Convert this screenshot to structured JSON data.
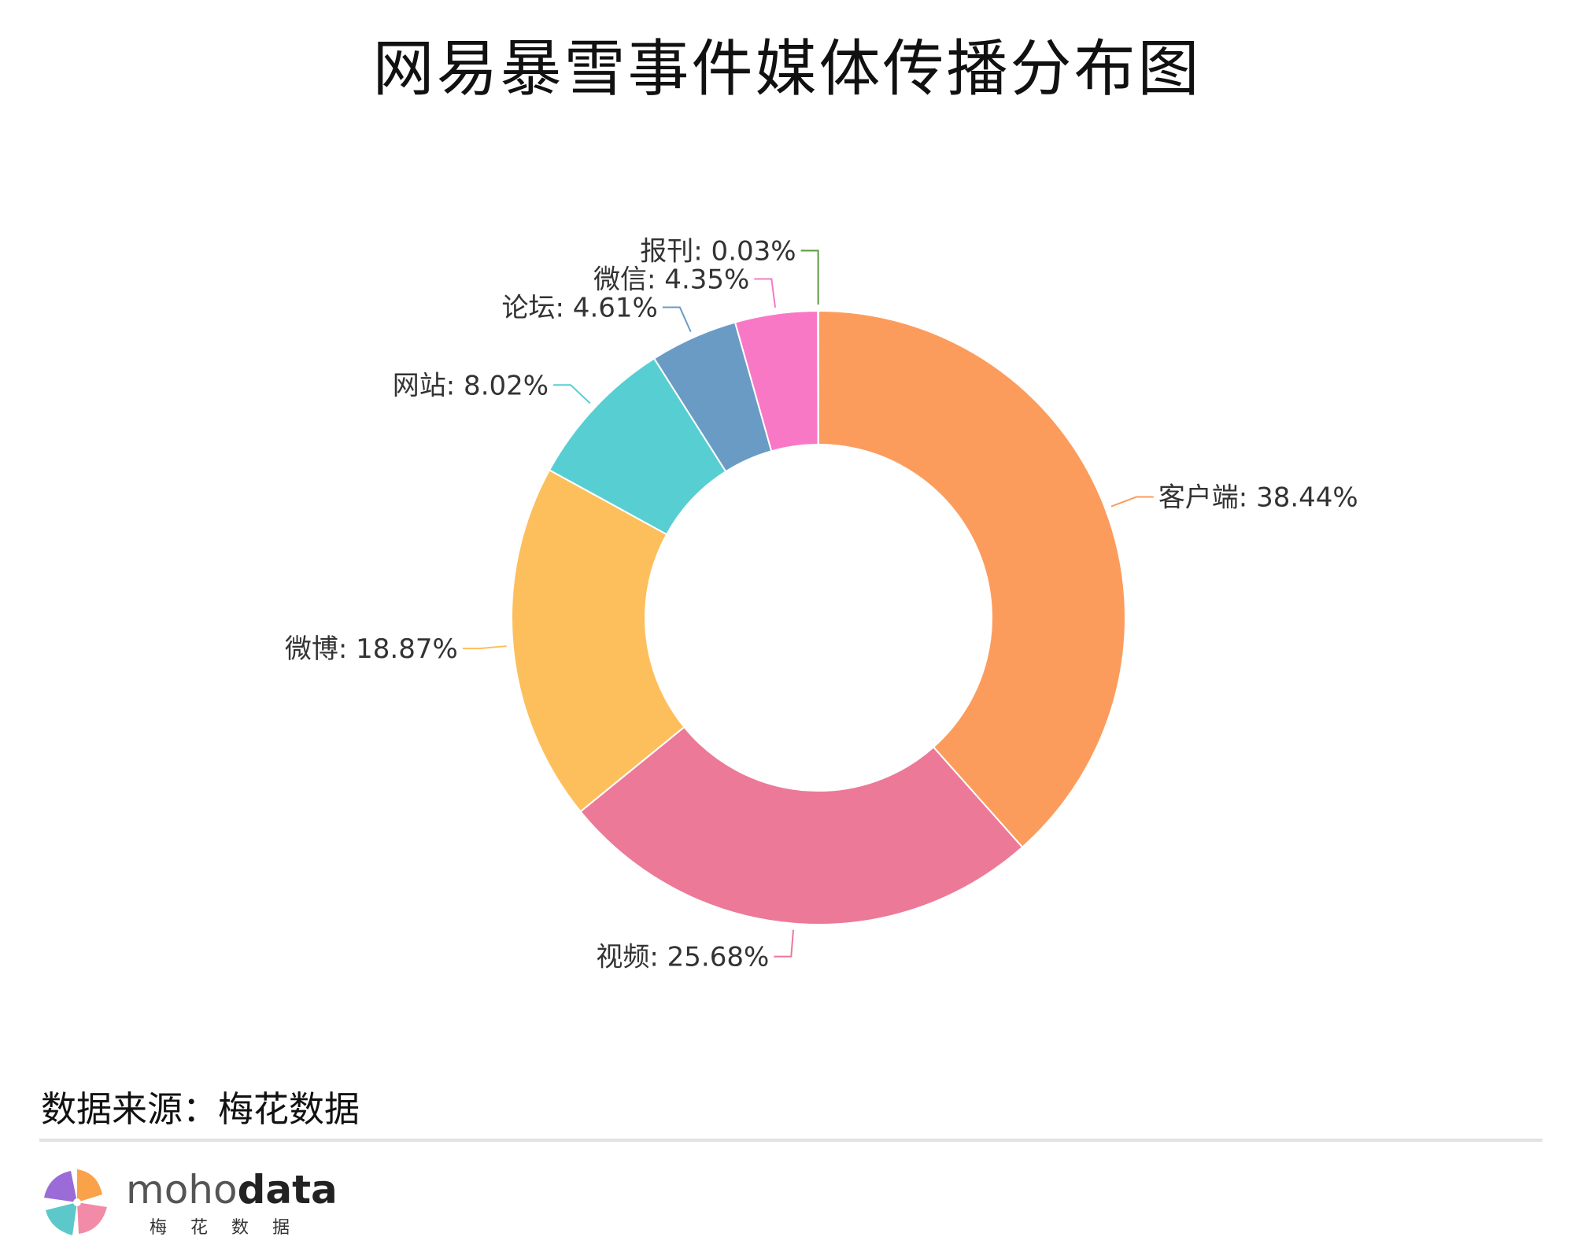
{
  "chart_data": {
    "type": "pie",
    "variant": "donut",
    "title": "网易暴雪事件媒体传播分布图",
    "label_separator": ": ",
    "start_angle_deg": 0,
    "direction": "clockwise",
    "slices": [
      {
        "name": "客户端",
        "value": 38.44,
        "label": "38.44%",
        "color": "#FC9C5C"
      },
      {
        "name": "视频",
        "value": 25.68,
        "label": "25.68%",
        "color": "#EC7998"
      },
      {
        "name": "微博",
        "value": 18.87,
        "label": "18.87%",
        "color": "#FDBF5C"
      },
      {
        "name": "网站",
        "value": 8.02,
        "label": "8.02%",
        "color": "#57CFD2"
      },
      {
        "name": "论坛",
        "value": 4.61,
        "label": "4.61%",
        "color": "#6A9BC5"
      },
      {
        "name": "微信",
        "value": 4.35,
        "label": "4.35%",
        "color": "#F978C6"
      },
      {
        "name": "报刊",
        "value": 0.03,
        "label": "0.03%",
        "color": "#5C9A3C"
      }
    ]
  },
  "source_text": "数据来源：梅花数据",
  "logo": {
    "text_light": "moho",
    "text_bold": "data",
    "subtitle": "梅花数据",
    "colors": [
      "#F9A24A",
      "#F28BA8",
      "#5CC8C9",
      "#9B6BD8"
    ]
  }
}
